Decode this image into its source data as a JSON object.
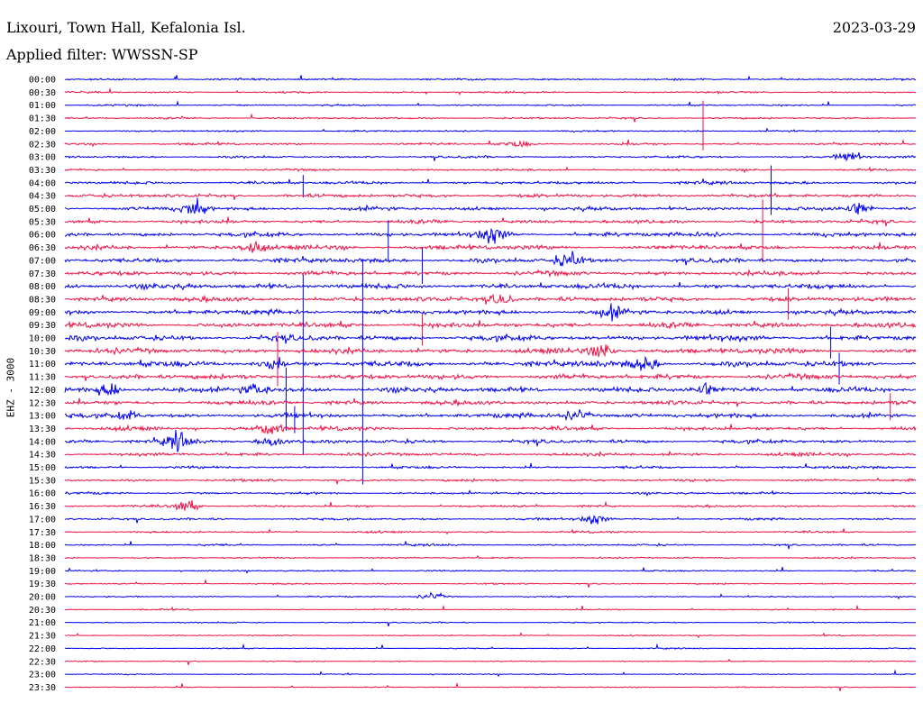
{
  "header": {
    "station": "Lixouri, Town Hall, Kefalonia Isl.",
    "date": "2023-03-29",
    "filter": "Applied filter: WWSSN-SP",
    "channel": "EHZ - 3000"
  },
  "colors": {
    "even": "#0000ee",
    "odd": "#ee1144"
  },
  "chart_data": {
    "type": "line",
    "title": "Lixouri, Town Hall, Kefalonia Isl.",
    "ylabel": "EHZ - 3000",
    "grid": false,
    "legend": "none",
    "tick_labels": [
      "00:00",
      "00:30",
      "01:00",
      "01:30",
      "02:00",
      "02:30",
      "03:00",
      "03:30",
      "04:00",
      "04:30",
      "05:00",
      "05:30",
      "06:00",
      "06:30",
      "07:00",
      "07:30",
      "08:00",
      "08:30",
      "09:00",
      "09:30",
      "10:00",
      "10:30",
      "11:00",
      "11:30",
      "12:00",
      "12:30",
      "13:00",
      "13:30",
      "14:00",
      "14:30",
      "15:00",
      "15:30",
      "16:00",
      "16:30",
      "17:00",
      "17:30",
      "18:00",
      "18:30",
      "19:00",
      "19:30",
      "20:00",
      "20:30",
      "21:00",
      "21:30",
      "22:00",
      "22:30",
      "23:00",
      "23:30"
    ],
    "noise_level": [
      0.5,
      0.5,
      0.45,
      0.5,
      0.45,
      0.6,
      0.6,
      0.55,
      0.8,
      1.0,
      1.0,
      1.0,
      1.2,
      1.2,
      1.2,
      1.2,
      1.4,
      1.3,
      1.3,
      1.4,
      1.5,
      1.4,
      1.5,
      1.4,
      1.4,
      1.2,
      1.2,
      1.0,
      1.0,
      0.9,
      0.7,
      0.7,
      0.6,
      0.6,
      0.6,
      0.5,
      0.5,
      0.45,
      0.4,
      0.4,
      0.35,
      0.35,
      0.35,
      0.3,
      0.3,
      0.3,
      0.3,
      0.3
    ],
    "events": [
      {
        "row": 5,
        "t": 0.53,
        "amp": 4
      },
      {
        "row": 6,
        "t": 0.92,
        "amp": 6
      },
      {
        "row": 10,
        "t": 0.15,
        "amp": 9
      },
      {
        "row": 10,
        "t": 0.93,
        "amp": 9
      },
      {
        "row": 12,
        "t": 0.5,
        "amp": 9
      },
      {
        "row": 13,
        "t": 0.22,
        "amp": 6
      },
      {
        "row": 14,
        "t": 0.59,
        "amp": 9
      },
      {
        "row": 17,
        "t": 0.51,
        "amp": 7
      },
      {
        "row": 18,
        "t": 0.64,
        "amp": 6
      },
      {
        "row": 21,
        "t": 0.63,
        "amp": 7
      },
      {
        "row": 22,
        "t": 0.24,
        "amp": 6
      },
      {
        "row": 22,
        "t": 0.68,
        "amp": 7
      },
      {
        "row": 24,
        "t": 0.05,
        "amp": 9
      },
      {
        "row": 24,
        "t": 0.22,
        "amp": 7
      },
      {
        "row": 24,
        "t": 0.75,
        "amp": 8
      },
      {
        "row": 26,
        "t": 0.07,
        "amp": 5
      },
      {
        "row": 26,
        "t": 0.6,
        "amp": 7
      },
      {
        "row": 27,
        "t": 0.24,
        "amp": 8
      },
      {
        "row": 28,
        "t": 0.13,
        "amp": 8
      },
      {
        "row": 28,
        "t": 0.24,
        "amp": 6
      },
      {
        "row": 33,
        "t": 0.14,
        "amp": 7
      },
      {
        "row": 34,
        "t": 0.62,
        "amp": 6
      },
      {
        "row": 40,
        "t": 0.43,
        "amp": 4
      }
    ],
    "spikes": [
      {
        "row": 3,
        "t": 0.75,
        "h": 55
      },
      {
        "row": 8,
        "t": 0.28,
        "h": 25
      },
      {
        "row": 8,
        "t": 0.83,
        "h": 55
      },
      {
        "row": 11,
        "t": 0.82,
        "h": 70
      },
      {
        "row": 12,
        "t": 0.38,
        "h": 45
      },
      {
        "row": 14,
        "t": 0.42,
        "h": 40
      },
      {
        "row": 17,
        "t": 0.85,
        "h": 35
      },
      {
        "row": 19,
        "t": 0.42,
        "h": 35
      },
      {
        "row": 20,
        "t": 0.9,
        "h": 35
      },
      {
        "row": 22,
        "t": 0.91,
        "h": 35
      },
      {
        "row": 24,
        "t": 0.26,
        "h": 70
      },
      {
        "row": 25,
        "t": 0.97,
        "h": 30
      },
      {
        "row": 20,
        "t": 0.28,
        "h": 200
      },
      {
        "row": 20,
        "t": 0.35,
        "h": 250
      },
      {
        "row": 21,
        "t": 0.25,
        "h": 60
      },
      {
        "row": 26,
        "t": 0.27,
        "h": 30
      }
    ]
  }
}
